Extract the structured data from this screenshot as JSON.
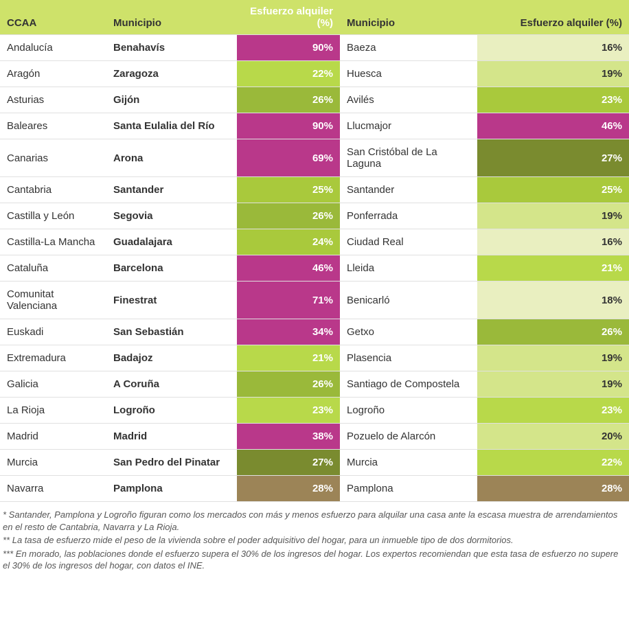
{
  "headers": {
    "ccaa": "CCAA",
    "muni1": "Municipio",
    "pct1": "Esfuerzo alquiler (%)",
    "muni2": "Municipio",
    "pct2": "Esfuerzo alquiler (%)"
  },
  "color_scale": {
    "purple": "#b9388a",
    "brown": "#9c8457",
    "olive_dark": "#7a8b2f",
    "olive": "#889e35",
    "green": "#9ab93a",
    "lime": "#a9c93c",
    "lime_bright": "#b8d94a",
    "lime_pale": "#d4e58a",
    "cream": "#e9efc0"
  },
  "rows": [
    {
      "ccaa": "Andalucía",
      "muni1": "Benahavís",
      "pct1": "90%",
      "color1": "purple",
      "tc1": "#ffffff",
      "muni2": "Baeza",
      "pct2": "16%",
      "color2": "cream",
      "tc2": "#333333"
    },
    {
      "ccaa": "Aragón",
      "muni1": "Zaragoza",
      "pct1": "22%",
      "color1": "lime_bright",
      "tc1": "#ffffff",
      "muni2": "Huesca",
      "pct2": "19%",
      "color2": "lime_pale",
      "tc2": "#333333"
    },
    {
      "ccaa": "Asturias",
      "muni1": "Gijón",
      "pct1": "26%",
      "color1": "green",
      "tc1": "#ffffff",
      "muni2": "Avilés",
      "pct2": "23%",
      "color2": "lime",
      "tc2": "#ffffff"
    },
    {
      "ccaa": "Baleares",
      "muni1": "Santa Eulalia del Río",
      "pct1": "90%",
      "color1": "purple",
      "tc1": "#ffffff",
      "muni2": "Llucmajor",
      "pct2": "46%",
      "color2": "purple",
      "tc2": "#ffffff"
    },
    {
      "ccaa": "Canarias",
      "muni1": "Arona",
      "pct1": "69%",
      "color1": "purple",
      "tc1": "#ffffff",
      "muni2": "San Cristóbal de La Laguna",
      "pct2": "27%",
      "color2": "olive_dark",
      "tc2": "#ffffff"
    },
    {
      "ccaa": "Cantabria",
      "muni1": "Santander",
      "pct1": "25%",
      "color1": "lime",
      "tc1": "#ffffff",
      "muni2": "Santander",
      "pct2": "25%",
      "color2": "lime",
      "tc2": "#ffffff"
    },
    {
      "ccaa": "Castilla y León",
      "muni1": "Segovia",
      "pct1": "26%",
      "color1": "green",
      "tc1": "#ffffff",
      "muni2": "Ponferrada",
      "pct2": "19%",
      "color2": "lime_pale",
      "tc2": "#333333"
    },
    {
      "ccaa": "Castilla-La Mancha",
      "muni1": "Guadalajara",
      "pct1": "24%",
      "color1": "lime",
      "tc1": "#ffffff",
      "muni2": "Ciudad Real",
      "pct2": "16%",
      "color2": "cream",
      "tc2": "#333333"
    },
    {
      "ccaa": "Cataluña",
      "muni1": "Barcelona",
      "pct1": "46%",
      "color1": "purple",
      "tc1": "#ffffff",
      "muni2": "Lleida",
      "pct2": "21%",
      "color2": "lime_bright",
      "tc2": "#ffffff"
    },
    {
      "ccaa": "Comunitat Valenciana",
      "muni1": "Finestrat",
      "pct1": "71%",
      "color1": "purple",
      "tc1": "#ffffff",
      "muni2": "Benicarló",
      "pct2": "18%",
      "color2": "cream",
      "tc2": "#333333"
    },
    {
      "ccaa": "Euskadi",
      "muni1": "San Sebastián",
      "pct1": "34%",
      "color1": "purple",
      "tc1": "#ffffff",
      "muni2": "Getxo",
      "pct2": "26%",
      "color2": "green",
      "tc2": "#ffffff"
    },
    {
      "ccaa": "Extremadura",
      "muni1": "Badajoz",
      "pct1": "21%",
      "color1": "lime_bright",
      "tc1": "#ffffff",
      "muni2": "Plasencia",
      "pct2": "19%",
      "color2": "lime_pale",
      "tc2": "#333333"
    },
    {
      "ccaa": "Galicia",
      "muni1": "A Coruña",
      "pct1": "26%",
      "color1": "green",
      "tc1": "#ffffff",
      "muni2": "Santiago de Compostela",
      "pct2": "19%",
      "color2": "lime_pale",
      "tc2": "#333333"
    },
    {
      "ccaa": "La Rioja",
      "muni1": "Logroño",
      "pct1": "23%",
      "color1": "lime_bright",
      "tc1": "#ffffff",
      "muni2": "Logroño",
      "pct2": "23%",
      "color2": "lime_bright",
      "tc2": "#ffffff"
    },
    {
      "ccaa": "Madrid",
      "muni1": "Madrid",
      "pct1": "38%",
      "color1": "purple",
      "tc1": "#ffffff",
      "muni2": "Pozuelo de Alarcón",
      "pct2": "20%",
      "color2": "lime_pale",
      "tc2": "#333333"
    },
    {
      "ccaa": "Murcia",
      "muni1": "San Pedro del Pinatar",
      "pct1": "27%",
      "color1": "olive_dark",
      "tc1": "#ffffff",
      "muni2": "Murcia",
      "pct2": "22%",
      "color2": "lime_bright",
      "tc2": "#ffffff"
    },
    {
      "ccaa": "Navarra",
      "muni1": "Pamplona",
      "pct1": "28%",
      "color1": "brown",
      "tc1": "#ffffff",
      "muni2": "Pamplona",
      "pct2": "28%",
      "color2": "brown",
      "tc2": "#ffffff"
    }
  ],
  "notes": [
    "* Santander, Pamplona y Logroño figuran como los mercados con más y menos esfuerzo para alquilar una casa ante la escasa muestra de arrendamientos en el resto de Cantabria, Navarra y La Rioja.",
    "** La tasa de esfuerzo mide el peso de la vivienda sobre el poder adquisitivo del hogar, para un inmueble tipo de dos dormitorios.",
    "*** En morado, las poblaciones donde el esfuerzo supera el 30% de los ingresos del hogar. Los expertos recomiendan que esta tasa de esfuerzo no supere el 30% de los ingresos del hogar, con datos el INE."
  ]
}
